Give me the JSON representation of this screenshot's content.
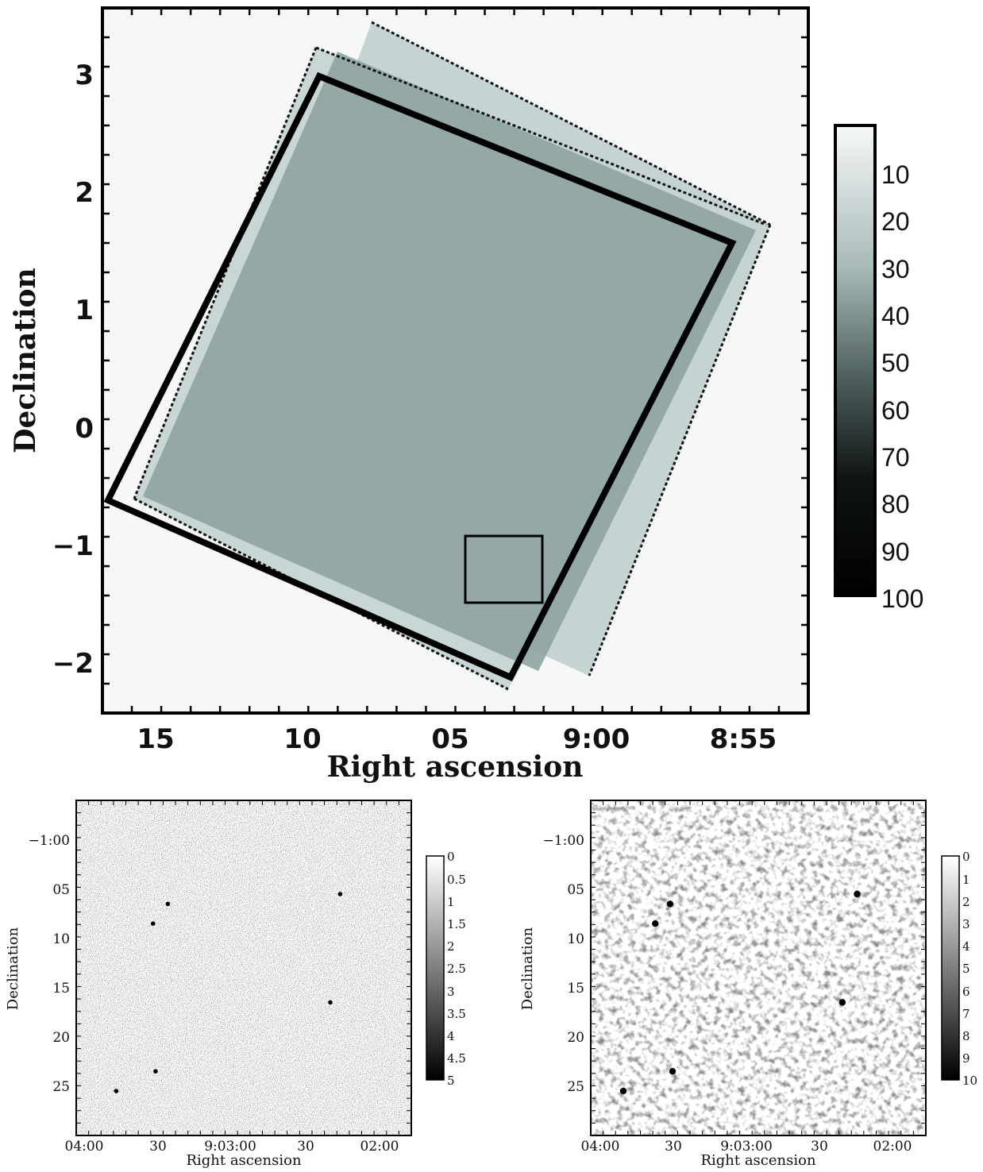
{
  "panels": {
    "main": {
      "xlabel": "Right ascension",
      "ylabel": "Declination",
      "xticks": [
        "15",
        "10",
        "05",
        "9:00",
        "8:55"
      ],
      "yticks": [
        "3",
        "2",
        "1",
        "0",
        "−1",
        "−2"
      ],
      "colorbar_ticks": [
        "10",
        "20",
        "30",
        "40",
        "50",
        "60",
        "70",
        "80",
        "90",
        "100"
      ]
    },
    "left": {
      "xlabel": "Right ascension",
      "ylabel": "Declination",
      "xticks": [
        "04:00",
        "30",
        "9:03:00",
        "30",
        "02:00"
      ],
      "yticks": [
        "−1:00",
        "05",
        "10",
        "15",
        "20",
        "25"
      ],
      "colorbar_ticks": [
        "0",
        "0.5",
        "1",
        "1.5",
        "2",
        "2.5",
        "3",
        "3.5",
        "4",
        "4.5",
        "5"
      ]
    },
    "right": {
      "xlabel": "Right ascension",
      "ylabel": "Declination",
      "xticks": [
        "04:00",
        "30",
        "9:03:00",
        "30",
        "02:00"
      ],
      "yticks": [
        "−1:00",
        "05",
        "10",
        "15",
        "20",
        "25"
      ],
      "colorbar_ticks": [
        "0",
        "1",
        "2",
        "3",
        "4",
        "5",
        "6",
        "7",
        "8",
        "9",
        "10"
      ]
    }
  },
  "chart_data": [
    {
      "type": "heatmap",
      "title": "",
      "xlabel": "Right ascension",
      "ylabel": "Declination",
      "x_ticks": [
        "15",
        "10",
        "05",
        "9:00",
        "8:55"
      ],
      "y_ticks": [
        3,
        2,
        1,
        0,
        -1,
        -2
      ],
      "ylim": [
        -2.4,
        3.6
      ],
      "colorbar": {
        "min": 0,
        "max": 100,
        "ticks": [
          10,
          20,
          30,
          40,
          50,
          60,
          70,
          80,
          90,
          100
        ],
        "colormap": "white-to-black"
      },
      "regions": [
        {
          "name": "field A (light)",
          "level": 15
        },
        {
          "name": "field B (light)",
          "level": 15
        },
        {
          "name": "overlap (darker)",
          "level": 40
        },
        {
          "name": "bold outline",
          "level": 100
        },
        {
          "name": "small zoom box",
          "level": 100
        }
      ]
    },
    {
      "type": "heatmap",
      "title": "",
      "xlabel": "Right ascension",
      "ylabel": "Declination",
      "x_ticks": [
        "04:00",
        "30",
        "9:03:00",
        "30",
        "02:00"
      ],
      "y_ticks": [
        "−1:00",
        "05",
        "10",
        "15",
        "20",
        "25"
      ],
      "colorbar": {
        "min": 0,
        "max": 5,
        "ticks": [
          0,
          0.5,
          1,
          1.5,
          2,
          2.5,
          3,
          3.5,
          4,
          4.5,
          5
        ],
        "colormap": "white-to-black"
      },
      "noise_level": "fine grain",
      "sources": [
        {
          "ra": "9:03:26",
          "dec": "-1:06"
        },
        {
          "ra": "9:03:32",
          "dec": "-1:08"
        },
        {
          "ra": "9:02:16",
          "dec": "-1:05"
        },
        {
          "ra": "9:02:20",
          "dec": "-1:16"
        },
        {
          "ra": "9:03:31",
          "dec": "-1:23"
        },
        {
          "ra": "9:03:47",
          "dec": "-1:25"
        }
      ]
    },
    {
      "type": "heatmap",
      "title": "",
      "xlabel": "Right ascension",
      "ylabel": "Declination",
      "x_ticks": [
        "04:00",
        "30",
        "9:03:00",
        "30",
        "02:00"
      ],
      "y_ticks": [
        "−1:00",
        "05",
        "10",
        "15",
        "20",
        "25"
      ],
      "colorbar": {
        "min": 0,
        "max": 10,
        "ticks": [
          0,
          1,
          2,
          3,
          4,
          5,
          6,
          7,
          8,
          9,
          10
        ],
        "colormap": "white-to-black"
      },
      "noise_level": "smoothed blobs",
      "sources": [
        {
          "ra": "9:03:31",
          "dec": "-1:06"
        },
        {
          "ra": "9:03:37",
          "dec": "-1:08"
        },
        {
          "ra": "9:02:15",
          "dec": "-1:05"
        },
        {
          "ra": "9:02:21",
          "dec": "-1:16"
        },
        {
          "ra": "9:03:30",
          "dec": "-1:23"
        },
        {
          "ra": "9:03:50",
          "dec": "-1:25"
        }
      ]
    }
  ]
}
